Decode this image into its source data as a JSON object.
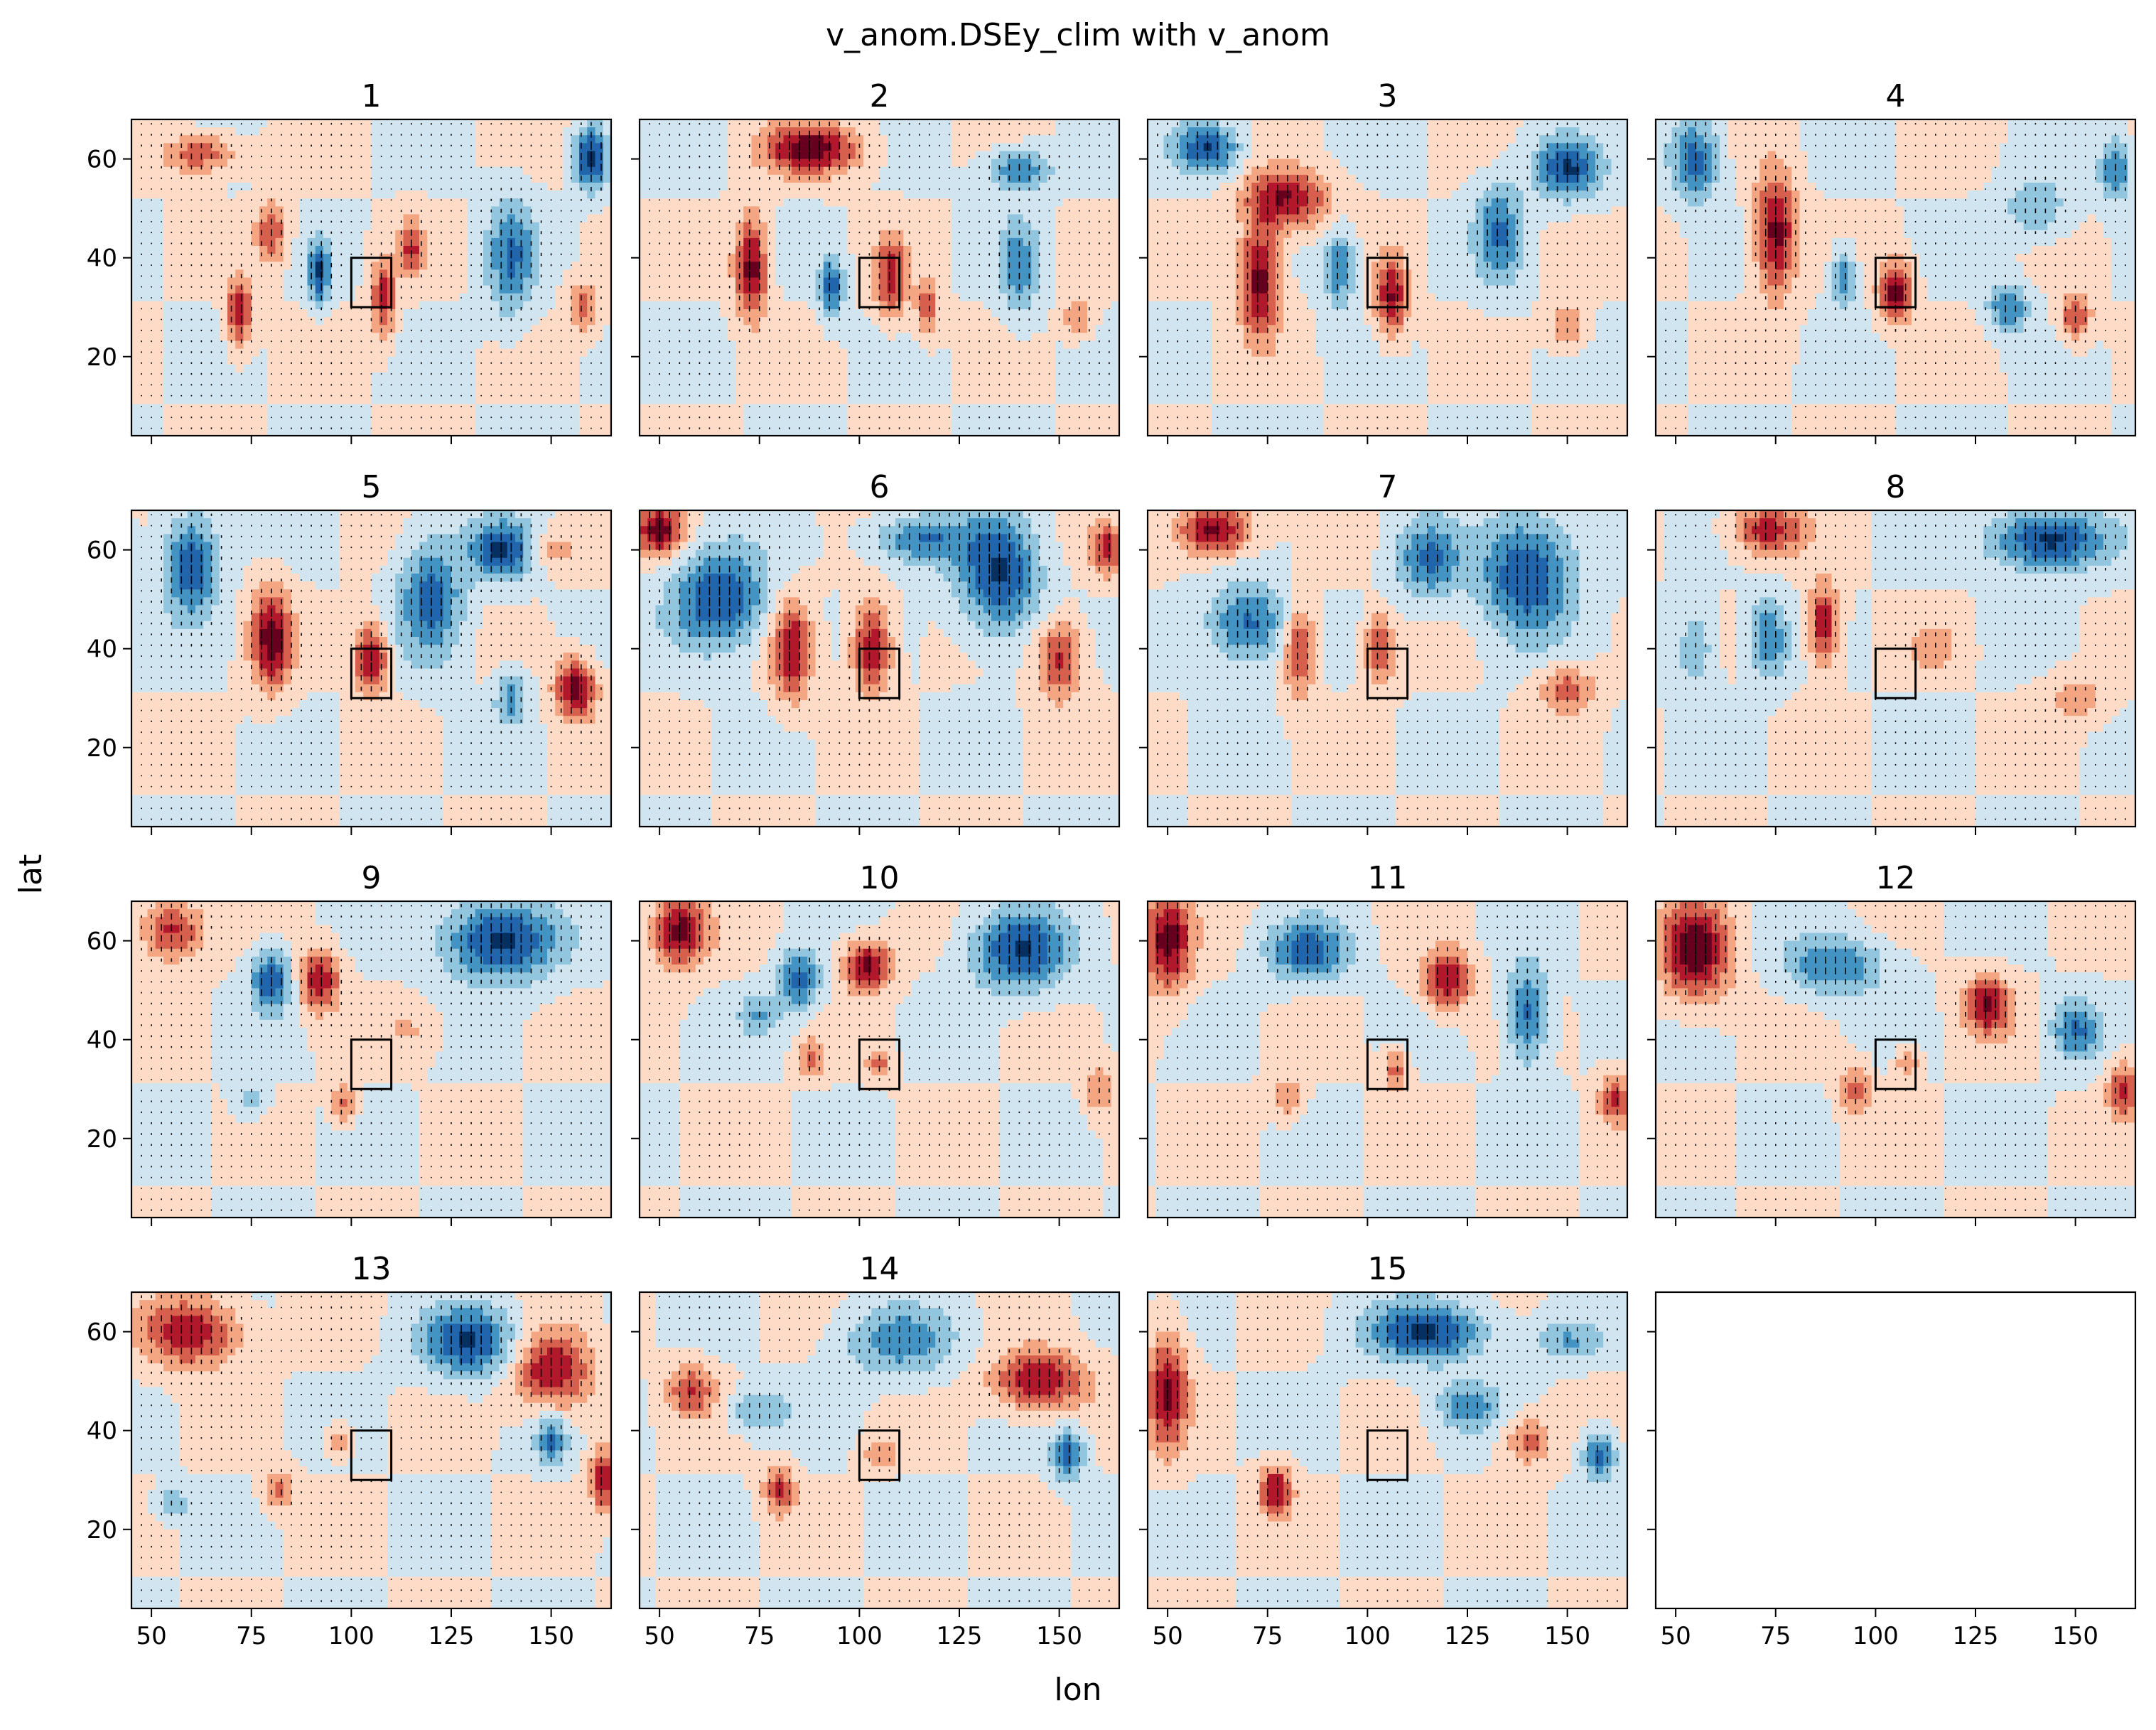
{
  "figure": {
    "title": "v_anom.DSEy_clim with v_anom",
    "xlabel": "lon",
    "ylabel": "lat"
  },
  "chart_data": {
    "type": "heatmap",
    "layout": "4x4 grid of filled-contour panels with quiver arrows (15 used, last empty)",
    "colormap": "RdBu_r",
    "xlim": [
      45,
      165
    ],
    "ylim": [
      4,
      68
    ],
    "xticks": [
      50,
      75,
      100,
      125,
      150
    ],
    "yticks": [
      20,
      40,
      60
    ],
    "xtick_labels": [
      "50",
      "75",
      "100",
      "125",
      "150"
    ],
    "ytick_labels": [
      "20",
      "40",
      "60"
    ],
    "box": {
      "lon": [
        100,
        110
      ],
      "lat": [
        30,
        40
      ]
    },
    "panels": [
      {
        "title": "1",
        "blobs": [
          [
            62,
            61,
            9,
            4,
            0.6
          ],
          [
            72,
            29,
            3,
            7,
            0.8
          ],
          [
            80,
            45,
            4,
            6,
            0.6
          ],
          [
            92,
            37,
            3,
            6,
            -0.8
          ],
          [
            108,
            32,
            3,
            8,
            0.7
          ],
          [
            115,
            42,
            3,
            6,
            0.6
          ],
          [
            140,
            40,
            6,
            12,
            -0.6
          ],
          [
            160,
            60,
            4,
            6,
            -0.9
          ],
          [
            158,
            30,
            4,
            5,
            0.5
          ]
        ]
      },
      {
        "title": "2",
        "blobs": [
          [
            88,
            62,
            12,
            5,
            0.9
          ],
          [
            73,
            38,
            4,
            10,
            0.9
          ],
          [
            93,
            34,
            3,
            6,
            -0.7
          ],
          [
            108,
            36,
            4,
            8,
            0.7
          ],
          [
            117,
            30,
            3,
            6,
            0.5
          ],
          [
            140,
            58,
            8,
            4,
            -0.6
          ],
          [
            140,
            38,
            5,
            10,
            -0.5
          ],
          [
            155,
            28,
            4,
            4,
            0.4
          ]
        ]
      },
      {
        "title": "3",
        "blobs": [
          [
            60,
            62,
            8,
            5,
            -0.8
          ],
          [
            80,
            52,
            10,
            6,
            0.8
          ],
          [
            73,
            36,
            5,
            12,
            0.9
          ],
          [
            93,
            38,
            4,
            8,
            -0.6
          ],
          [
            106,
            32,
            4,
            8,
            0.8
          ],
          [
            133,
            45,
            6,
            10,
            -0.6
          ],
          [
            150,
            58,
            8,
            6,
            -0.8
          ],
          [
            150,
            26,
            5,
            5,
            0.4
          ]
        ]
      },
      {
        "title": "4",
        "blobs": [
          [
            55,
            60,
            6,
            8,
            -0.7
          ],
          [
            75,
            45,
            5,
            12,
            0.9
          ],
          [
            92,
            36,
            3,
            6,
            -0.6
          ],
          [
            105,
            33,
            4,
            6,
            0.9
          ],
          [
            133,
            30,
            5,
            5,
            -0.6
          ],
          [
            150,
            28,
            4,
            5,
            0.6
          ],
          [
            160,
            58,
            4,
            6,
            -0.6
          ],
          [
            140,
            50,
            8,
            6,
            -0.4
          ]
        ]
      },
      {
        "title": "5",
        "blobs": [
          [
            60,
            57,
            7,
            10,
            -0.8
          ],
          [
            80,
            42,
            5,
            10,
            0.9
          ],
          [
            105,
            38,
            4,
            7,
            0.9
          ],
          [
            120,
            50,
            8,
            12,
            -0.7
          ],
          [
            138,
            60,
            8,
            6,
            -0.8
          ],
          [
            140,
            30,
            4,
            5,
            -0.5
          ],
          [
            156,
            32,
            5,
            6,
            0.9
          ],
          [
            150,
            60,
            6,
            4,
            0.3
          ]
        ]
      },
      {
        "title": "6",
        "blobs": [
          [
            50,
            64,
            6,
            5,
            0.9
          ],
          [
            65,
            50,
            12,
            10,
            -0.8
          ],
          [
            83,
            40,
            5,
            10,
            0.8
          ],
          [
            103,
            40,
            5,
            9,
            0.8
          ],
          [
            135,
            55,
            10,
            12,
            -0.8
          ],
          [
            150,
            38,
            6,
            8,
            0.7
          ],
          [
            162,
            60,
            4,
            5,
            0.7
          ],
          [
            115,
            62,
            12,
            5,
            -0.6
          ]
        ]
      },
      {
        "title": "7",
        "blobs": [
          [
            62,
            64,
            9,
            5,
            0.9
          ],
          [
            70,
            45,
            10,
            8,
            -0.7
          ],
          [
            83,
            40,
            4,
            9,
            0.7
          ],
          [
            103,
            40,
            4,
            7,
            0.6
          ],
          [
            115,
            58,
            8,
            8,
            -0.6
          ],
          [
            140,
            55,
            12,
            12,
            -0.8
          ],
          [
            150,
            32,
            7,
            5,
            0.5
          ]
        ]
      },
      {
        "title": "8",
        "blobs": [
          [
            73,
            64,
            9,
            5,
            0.7
          ],
          [
            73,
            42,
            5,
            8,
            -0.6
          ],
          [
            87,
            45,
            4,
            8,
            0.8
          ],
          [
            143,
            62,
            14,
            6,
            -0.9
          ],
          [
            115,
            40,
            6,
            5,
            0.3
          ],
          [
            150,
            30,
            8,
            5,
            0.3
          ],
          [
            55,
            40,
            5,
            8,
            -0.4
          ]
        ]
      },
      {
        "title": "9",
        "blobs": [
          [
            55,
            62,
            8,
            6,
            0.7
          ],
          [
            80,
            52,
            5,
            6,
            -0.8
          ],
          [
            92,
            52,
            5,
            6,
            0.8
          ],
          [
            137,
            60,
            14,
            8,
            -0.9
          ],
          [
            98,
            27,
            3,
            4,
            0.5
          ],
          [
            75,
            28,
            4,
            4,
            -0.3
          ],
          [
            115,
            42,
            8,
            5,
            0.2
          ]
        ]
      },
      {
        "title": "10",
        "blobs": [
          [
            55,
            62,
            7,
            7,
            0.9
          ],
          [
            85,
            52,
            5,
            6,
            -0.7
          ],
          [
            102,
            55,
            6,
            5,
            0.9
          ],
          [
            140,
            58,
            12,
            8,
            -0.8
          ],
          [
            88,
            36,
            3,
            4,
            0.5
          ],
          [
            105,
            35,
            3,
            3,
            0.5
          ],
          [
            160,
            30,
            4,
            5,
            0.4
          ],
          [
            75,
            45,
            5,
            4,
            -0.4
          ]
        ]
      },
      {
        "title": "11",
        "blobs": [
          [
            50,
            60,
            6,
            10,
            0.9
          ],
          [
            85,
            58,
            10,
            6,
            -0.7
          ],
          [
            120,
            52,
            6,
            6,
            0.8
          ],
          [
            140,
            45,
            5,
            10,
            -0.7
          ],
          [
            80,
            28,
            4,
            4,
            0.4
          ],
          [
            107,
            34,
            3,
            4,
            0.5
          ],
          [
            162,
            28,
            4,
            5,
            0.6
          ]
        ]
      },
      {
        "title": "12",
        "blobs": [
          [
            55,
            58,
            9,
            10,
            0.9
          ],
          [
            90,
            55,
            12,
            6,
            -0.6
          ],
          [
            128,
            47,
            6,
            6,
            0.8
          ],
          [
            150,
            42,
            6,
            6,
            -0.6
          ],
          [
            95,
            30,
            4,
            5,
            0.5
          ],
          [
            108,
            35,
            3,
            3,
            0.4
          ],
          [
            162,
            30,
            4,
            6,
            0.6
          ]
        ]
      },
      {
        "title": "13",
        "blobs": [
          [
            60,
            60,
            12,
            7,
            0.8
          ],
          [
            130,
            58,
            12,
            7,
            -0.8
          ],
          [
            150,
            52,
            10,
            8,
            0.8
          ],
          [
            82,
            28,
            4,
            4,
            0.5
          ],
          [
            97,
            38,
            3,
            3,
            0.4
          ],
          [
            150,
            38,
            4,
            5,
            -0.6
          ],
          [
            163,
            30,
            3,
            6,
            0.8
          ],
          [
            55,
            25,
            4,
            3,
            -0.4
          ]
        ]
      },
      {
        "title": "14",
        "blobs": [
          [
            58,
            48,
            6,
            5,
            0.6
          ],
          [
            80,
            28,
            4,
            5,
            0.6
          ],
          [
            110,
            58,
            14,
            7,
            -0.5
          ],
          [
            145,
            50,
            12,
            6,
            0.8
          ],
          [
            152,
            35,
            4,
            5,
            -0.7
          ],
          [
            75,
            44,
            8,
            4,
            -0.4
          ],
          [
            105,
            35,
            4,
            3,
            0.4
          ]
        ]
      },
      {
        "title": "15",
        "blobs": [
          [
            50,
            48,
            5,
            12,
            0.8
          ],
          [
            77,
            28,
            4,
            5,
            0.8
          ],
          [
            115,
            60,
            15,
            6,
            -0.8
          ],
          [
            125,
            45,
            8,
            5,
            -0.5
          ],
          [
            140,
            38,
            6,
            5,
            0.5
          ],
          [
            158,
            35,
            4,
            5,
            -0.7
          ],
          [
            150,
            58,
            8,
            4,
            -0.4
          ]
        ]
      }
    ]
  }
}
